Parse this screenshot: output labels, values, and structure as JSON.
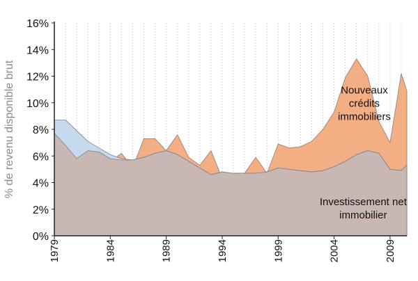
{
  "chart_data": {
    "type": "area",
    "xlabel": "",
    "ylabel": "% de revenu disponible brut",
    "xlim": [
      1979,
      2010.5
    ],
    "ylim": [
      0,
      16
    ],
    "x_tick_labels": [
      "1979",
      "1984",
      "1989",
      "1994",
      "1999",
      "2004",
      "2009"
    ],
    "y_tick_labels": [
      "0%",
      "2%",
      "4%",
      "6%",
      "8%",
      "10%",
      "12%",
      "14%",
      "16%"
    ],
    "grid": "vertical",
    "x": [
      1979,
      1980,
      1981,
      1982,
      1983,
      1984,
      1985,
      1986,
      1987,
      1988,
      1989,
      1990,
      1991,
      1992,
      1993,
      1994,
      1995,
      1996,
      1997,
      1998,
      1999,
      2000,
      2001,
      2002,
      2003,
      2004,
      2005,
      2006,
      2007,
      2008,
      2009,
      2010,
      2010.5
    ],
    "series": [
      {
        "name": "Nouveaux crédits immobiliers",
        "color": "#f3ae83",
        "values": [
          8.7,
          6.9,
          5.6,
          6.4,
          6.3,
          5.6,
          6.2,
          5.1,
          7.3,
          7.3,
          6.4,
          7.6,
          5.9,
          5.3,
          6.4,
          4.3,
          4.7,
          4.7,
          5.9,
          4.7,
          6.9,
          6.6,
          6.7,
          7.1,
          8.0,
          9.3,
          11.9,
          13.3,
          12.0,
          8.6,
          7.0,
          12.2,
          10.9
        ]
      },
      {
        "name": "Investissement net immobilier",
        "color": "#c9b7b3",
        "values": [
          7.7,
          6.8,
          5.8,
          6.4,
          6.3,
          5.8,
          5.7,
          5.7,
          5.9,
          6.2,
          6.4,
          6.1,
          5.6,
          5.1,
          4.6,
          4.8,
          4.7,
          4.7,
          4.7,
          4.8,
          5.1,
          5.0,
          4.9,
          4.8,
          4.9,
          5.2,
          5.6,
          6.1,
          6.4,
          6.2,
          5.0,
          4.9,
          5.3
        ]
      },
      {
        "name": "",
        "color": "#c5daee",
        "values": [
          8.7,
          8.7,
          7.9,
          7.1,
          6.6,
          6.1,
          5.8,
          5.7,
          5.9,
          6.2,
          6.4,
          6.1,
          5.6,
          5.1,
          4.6,
          4.8,
          4.7,
          4.7,
          4.7,
          4.8,
          5.1,
          5.0,
          4.9,
          4.8,
          4.9,
          5.2,
          5.6,
          6.1,
          6.4,
          6.2,
          5.0,
          4.9,
          5.3
        ]
      }
    ],
    "annotations": [
      {
        "lines": [
          "Nouveaux",
          "crédits",
          "immobiliers"
        ],
        "x": 2006.7,
        "y": 8.7
      },
      {
        "lines": [
          "Investissement net",
          "immobilier"
        ],
        "x": 2006.6,
        "y": 1.3
      }
    ]
  }
}
